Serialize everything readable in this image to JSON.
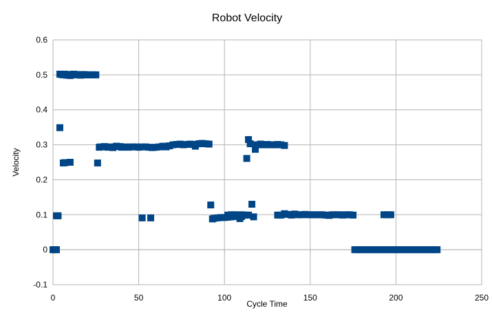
{
  "chart_data": {
    "type": "scatter",
    "title": "Robot Velocity",
    "xlabel": "Cycle Time",
    "ylabel": "Velocity",
    "xlim": [
      0,
      250
    ],
    "ylim": [
      -0.1,
      0.6
    ],
    "x_ticks": [
      0,
      50,
      100,
      150,
      200,
      250
    ],
    "y_ticks": [
      -0.1,
      0,
      0.1,
      0.2,
      0.3,
      0.4,
      0.5,
      0.6
    ],
    "x_tick_labels": [
      "0",
      "50",
      "100",
      "150",
      "200",
      "250"
    ],
    "y_tick_labels": [
      "-0.1",
      "0",
      "0.1",
      "0.2",
      "0.3",
      "0.4",
      "0.5",
      "0.6"
    ],
    "grid": true,
    "legend": "none",
    "marker": "square",
    "marker_color": "#004586",
    "series": [
      {
        "points": [
          [
            0,
            0
          ],
          [
            1,
            0
          ],
          [
            2,
            0
          ],
          [
            2,
            0.097
          ],
          [
            3,
            0.097
          ],
          [
            4,
            0.349
          ],
          [
            4,
            0.502
          ],
          [
            5,
            0.501
          ],
          [
            6,
            0.5
          ],
          [
            7,
            0.502
          ],
          [
            8,
            0.499
          ],
          [
            9,
            0.501
          ],
          [
            10,
            0.498
          ],
          [
            11,
            0.5
          ],
          [
            12,
            0.502
          ],
          [
            13,
            0.5
          ],
          [
            14,
            0.501
          ],
          [
            15,
            0.5
          ],
          [
            16,
            0.499
          ],
          [
            17,
            0.5
          ],
          [
            18,
            0.501
          ],
          [
            19,
            0.5
          ],
          [
            20,
            0.5
          ],
          [
            21,
            0.5
          ],
          [
            22,
            0.5
          ],
          [
            23,
            0.5
          ],
          [
            24,
            0.5
          ],
          [
            25,
            0.5
          ],
          [
            6,
            0.248
          ],
          [
            7,
            0.249
          ],
          [
            10,
            0.25
          ],
          [
            26,
            0.248
          ],
          [
            27,
            0.293
          ],
          [
            28,
            0.294
          ],
          [
            30,
            0.295
          ],
          [
            32,
            0.293
          ],
          [
            34,
            0.294
          ],
          [
            35,
            0.292
          ],
          [
            37,
            0.296
          ],
          [
            39,
            0.295
          ],
          [
            40,
            0.293
          ],
          [
            42,
            0.294
          ],
          [
            44,
            0.293
          ],
          [
            46,
            0.294
          ],
          [
            48,
            0.294
          ],
          [
            50,
            0.293
          ],
          [
            52,
            0.294
          ],
          [
            54,
            0.294
          ],
          [
            56,
            0.293
          ],
          [
            58,
            0.292
          ],
          [
            60,
            0.293
          ],
          [
            62,
            0.294
          ],
          [
            64,
            0.296
          ],
          [
            66,
            0.294
          ],
          [
            68,
            0.297
          ],
          [
            70,
            0.3
          ],
          [
            72,
            0.301
          ],
          [
            74,
            0.302
          ],
          [
            76,
            0.3
          ],
          [
            78,
            0.301
          ],
          [
            80,
            0.302
          ],
          [
            82,
            0.301
          ],
          [
            83,
            0.296
          ],
          [
            85,
            0.303
          ],
          [
            87,
            0.304
          ],
          [
            89,
            0.303
          ],
          [
            91,
            0.302
          ],
          [
            52,
            0.091
          ],
          [
            57,
            0.091
          ],
          [
            92,
            0.128
          ],
          [
            93,
            0.088
          ],
          [
            94,
            0.09
          ],
          [
            96,
            0.091
          ],
          [
            98,
            0.092
          ],
          [
            100,
            0.092
          ],
          [
            102,
            0.093
          ],
          [
            104,
            0.094
          ],
          [
            106,
            0.095
          ],
          [
            108,
            0.096
          ],
          [
            110,
            0.095
          ],
          [
            102,
            0.099
          ],
          [
            104,
            0.1
          ],
          [
            106,
            0.1
          ],
          [
            108,
            0.099
          ],
          [
            110,
            0.1
          ],
          [
            112,
            0.099
          ],
          [
            114,
            0.099
          ],
          [
            109,
            0.089
          ],
          [
            113,
            0.261
          ],
          [
            114,
            0.315
          ],
          [
            115,
            0.303
          ],
          [
            116,
            0.13
          ],
          [
            117,
            0.094
          ],
          [
            118,
            0.287
          ],
          [
            119,
            0.3
          ],
          [
            121,
            0.302
          ],
          [
            123,
            0.3
          ],
          [
            125,
            0.301
          ],
          [
            127,
            0.3
          ],
          [
            129,
            0.3
          ],
          [
            131,
            0.301
          ],
          [
            133,
            0.3
          ],
          [
            135,
            0.298
          ],
          [
            131,
            0.099
          ],
          [
            133,
            0.099
          ],
          [
            135,
            0.103
          ],
          [
            137,
            0.101
          ],
          [
            139,
            0.099
          ],
          [
            141,
            0.102
          ],
          [
            143,
            0.1
          ],
          [
            145,
            0.1
          ],
          [
            147,
            0.101
          ],
          [
            149,
            0.1
          ],
          [
            151,
            0.1
          ],
          [
            153,
            0.1
          ],
          [
            155,
            0.1
          ],
          [
            157,
            0.1
          ],
          [
            159,
            0.099
          ],
          [
            161,
            0.098
          ],
          [
            163,
            0.1
          ],
          [
            165,
            0.1
          ],
          [
            167,
            0.1
          ],
          [
            169,
            0.099
          ],
          [
            171,
            0.1
          ],
          [
            173,
            0.1
          ],
          [
            175,
            0.099
          ],
          [
            176,
            0
          ],
          [
            178,
            0
          ],
          [
            180,
            0
          ],
          [
            182,
            0
          ],
          [
            184,
            0
          ],
          [
            186,
            0
          ],
          [
            188,
            0
          ],
          [
            190,
            0
          ],
          [
            192,
            0
          ],
          [
            194,
            0
          ],
          [
            196,
            0
          ],
          [
            198,
            0
          ],
          [
            200,
            0
          ],
          [
            202,
            0
          ],
          [
            204,
            0
          ],
          [
            206,
            0
          ],
          [
            208,
            0
          ],
          [
            210,
            0
          ],
          [
            212,
            0
          ],
          [
            214,
            0
          ],
          [
            216,
            0
          ],
          [
            218,
            0
          ],
          [
            220,
            0
          ],
          [
            222,
            0
          ],
          [
            224,
            0
          ],
          [
            193,
            0.1
          ],
          [
            195,
            0.1
          ],
          [
            197,
            0.1
          ]
        ]
      }
    ]
  }
}
